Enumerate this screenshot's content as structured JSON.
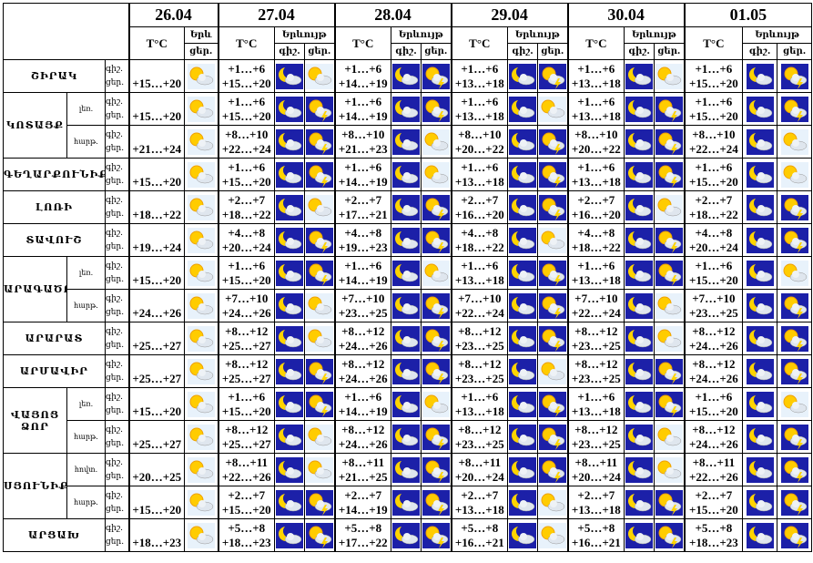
{
  "header": {
    "dates": [
      "26.04",
      "27.04",
      "28.04",
      "29.04",
      "30.04",
      "01.05"
    ],
    "temp_label": "T°C",
    "first_phenomenon": "Երև",
    "phenomenon": "Երևույթ",
    "night": "գիշ.",
    "day": "ցեր."
  },
  "regions": [
    {
      "name": "ՇԻՐԱԿ",
      "zones": [
        {
          "first_day": "+15…+20",
          "days": [
            [
              "+1…+6",
              "+15…+20"
            ],
            [
              "+1…+6",
              "+14…+19"
            ],
            [
              "+1…+6",
              "+13…+18"
            ],
            [
              "+1…+6",
              "+13…+18"
            ],
            [
              "+1…+6",
              "+15…+20"
            ]
          ]
        }
      ]
    },
    {
      "name": "ԿՈՏԱՅՔ",
      "zones": [
        {
          "name": "լեռ.",
          "first_day": "+15…+20",
          "days": [
            [
              "+1…+6",
              "+15…+20"
            ],
            [
              "+1…+6",
              "+14…+19"
            ],
            [
              "+1…+6",
              "+13…+18"
            ],
            [
              "+1…+6",
              "+13…+18"
            ],
            [
              "+1…+6",
              "+15…+20"
            ]
          ]
        },
        {
          "name": "հարթ.",
          "first_day": "+21…+24",
          "days": [
            [
              "+8…+10",
              "+22…+24"
            ],
            [
              "+8…+10",
              "+21…+23"
            ],
            [
              "+8…+10",
              "+20…+22"
            ],
            [
              "+8…+10",
              "+20…+22"
            ],
            [
              "+8…+10",
              "+22…+24"
            ]
          ]
        }
      ]
    },
    {
      "name": "ԳԵՂԱՐՔՈՒՆԻՔ",
      "zones": [
        {
          "first_day": "+15…+20",
          "days": [
            [
              "+1…+6",
              "+15…+20"
            ],
            [
              "+1…+6",
              "+14…+19"
            ],
            [
              "+1…+6",
              "+13…+18"
            ],
            [
              "+1…+6",
              "+13…+18"
            ],
            [
              "+1…+6",
              "+15…+20"
            ]
          ]
        }
      ]
    },
    {
      "name": "ԼՈՌԻ",
      "zones": [
        {
          "first_day": "+18…+22",
          "days": [
            [
              "+2…+7",
              "+18…+22"
            ],
            [
              "+2…+7",
              "+17…+21"
            ],
            [
              "+2…+7",
              "+16…+20"
            ],
            [
              "+2…+7",
              "+16…+20"
            ],
            [
              "+2…+7",
              "+18…+22"
            ]
          ]
        }
      ]
    },
    {
      "name": "ՏԱՎՈՒՇ",
      "zones": [
        {
          "first_day": "+19…+24",
          "days": [
            [
              "+4…+8",
              "+20…+24"
            ],
            [
              "+4…+8",
              "+19…+23"
            ],
            [
              "+4…+8",
              "+18…+22"
            ],
            [
              "+4…+8",
              "+18…+22"
            ],
            [
              "+4…+8",
              "+20…+24"
            ]
          ]
        }
      ]
    },
    {
      "name": "ԱՐԱԳԱԾՈՏՆ",
      "zones": [
        {
          "name": "լեռ.",
          "first_day": "+15…+20",
          "days": [
            [
              "+1…+6",
              "+15…+20"
            ],
            [
              "+1…+6",
              "+14…+19"
            ],
            [
              "+1…+6",
              "+13…+18"
            ],
            [
              "+1…+6",
              "+13…+18"
            ],
            [
              "+1…+6",
              "+15…+20"
            ]
          ]
        },
        {
          "name": "հարթ.",
          "first_day": "+24…+26",
          "days": [
            [
              "+7…+10",
              "+24…+26"
            ],
            [
              "+7…+10",
              "+23…+25"
            ],
            [
              "+7…+10",
              "+22…+24"
            ],
            [
              "+7…+10",
              "+22…+24"
            ],
            [
              "+7…+10",
              "+23…+25"
            ]
          ]
        }
      ]
    },
    {
      "name": "ԱՐԱՐԱՏ",
      "zones": [
        {
          "first_day": "+25…+27",
          "days": [
            [
              "+8…+12",
              "+25…+27"
            ],
            [
              "+8…+12",
              "+24…+26"
            ],
            [
              "+8…+12",
              "+23…+25"
            ],
            [
              "+8…+12",
              "+23…+25"
            ],
            [
              "+8…+12",
              "+24…+26"
            ]
          ]
        }
      ]
    },
    {
      "name": "ԱՐՄԱՎԻՐ",
      "zones": [
        {
          "first_day": "+25…+27",
          "days": [
            [
              "+8…+12",
              "+25…+27"
            ],
            [
              "+8…+12",
              "+24…+26"
            ],
            [
              "+8…+12",
              "+23…+25"
            ],
            [
              "+8…+12",
              "+23…+25"
            ],
            [
              "+8…+12",
              "+24…+26"
            ]
          ]
        }
      ]
    },
    {
      "name": "ՎԱՅՈՑ ՁՈՐ",
      "zones": [
        {
          "name": "լեռ.",
          "first_day": "+15…+20",
          "days": [
            [
              "+1…+6",
              "+15…+20"
            ],
            [
              "+1…+6",
              "+14…+19"
            ],
            [
              "+1…+6",
              "+13…+18"
            ],
            [
              "+1…+6",
              "+13…+18"
            ],
            [
              "+1…+6",
              "+15…+20"
            ]
          ]
        },
        {
          "name": "հարթ.",
          "first_day": "+25…+27",
          "days": [
            [
              "+8…+12",
              "+25…+27"
            ],
            [
              "+8…+12",
              "+24…+26"
            ],
            [
              "+8…+12",
              "+23…+25"
            ],
            [
              "+8…+12",
              "+23…+25"
            ],
            [
              "+8…+12",
              "+24…+26"
            ]
          ]
        }
      ]
    },
    {
      "name": "ՍՅՈՒՆԻՔ",
      "zones": [
        {
          "name": "հովտ.",
          "first_day": "+20…+25",
          "days": [
            [
              "+8…+11",
              "+22…+26"
            ],
            [
              "+8…+11",
              "+21…+25"
            ],
            [
              "+8…+11",
              "+20…+24"
            ],
            [
              "+8…+11",
              "+20…+24"
            ],
            [
              "+8…+11",
              "+22…+26"
            ]
          ]
        },
        {
          "name": "հարթ.",
          "first_day": "+15…+20",
          "days": [
            [
              "+2…+7",
              "+15…+20"
            ],
            [
              "+2…+7",
              "+14…+19"
            ],
            [
              "+2…+7",
              "+13…+18"
            ],
            [
              "+2…+7",
              "+13…+18"
            ],
            [
              "+2…+7",
              "+15…+20"
            ]
          ]
        }
      ]
    },
    {
      "name": "ԱՐՑԱԽ",
      "zones": [
        {
          "first_day": "+18…+23",
          "days": [
            [
              "+5…+8",
              "+18…+23"
            ],
            [
              "+5…+8",
              "+17…+22"
            ],
            [
              "+5…+8",
              "+16…+21"
            ],
            [
              "+5…+8",
              "+16…+21"
            ],
            [
              "+5…+8",
              "+18…+23"
            ]
          ]
        }
      ]
    }
  ]
}
